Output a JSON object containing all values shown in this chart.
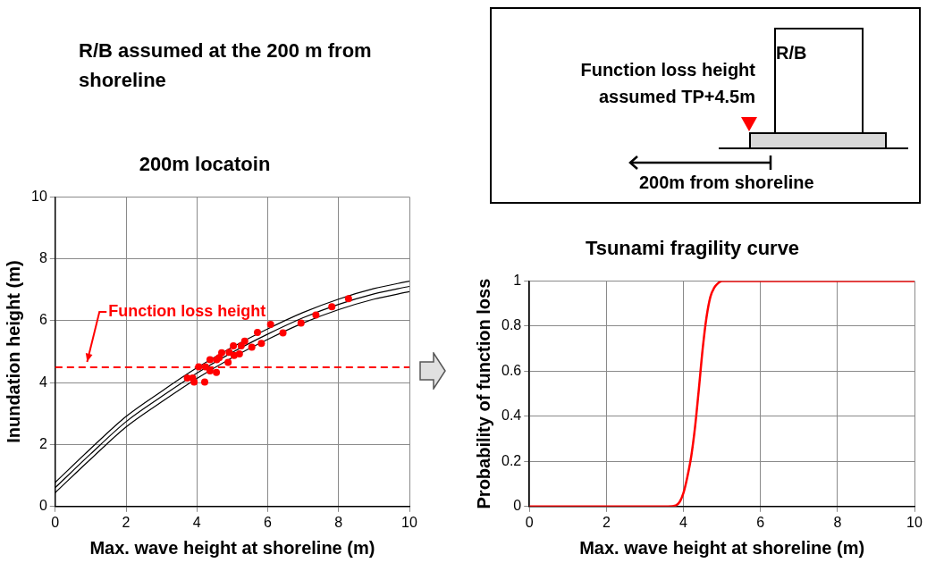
{
  "chart_data": [
    {
      "type": "scatter",
      "title": "200m locatoin",
      "xlabel": "Max. wave height at shoreline (m)",
      "ylabel": "Inundation height (m)",
      "xlim": [
        0,
        10
      ],
      "xticks": [
        0,
        2,
        4,
        6,
        8,
        10
      ],
      "ylim": [
        0,
        10
      ],
      "yticks": [
        0,
        2,
        4,
        6,
        8,
        10
      ],
      "grid": true,
      "series": [
        {
          "type": "scatter",
          "marker": "circle",
          "color": "#ff0000",
          "x": [
            3.73,
            3.88,
            3.92,
            4.05,
            4.22,
            4.24,
            4.31,
            4.37,
            4.37,
            4.55,
            4.56,
            4.63,
            4.7,
            4.88,
            4.91,
            5.03,
            5.05,
            5.2,
            5.25,
            5.35,
            5.55,
            5.71,
            5.82,
            6.08,
            6.43,
            6.94,
            7.36,
            7.81,
            8.28
          ],
          "values": [
            4.15,
            4.15,
            4.02,
            4.51,
            4.02,
            4.51,
            null,
            4.38,
            4.74,
            4.33,
            4.74,
            4.81,
            4.97,
            4.66,
            4.98,
            5.19,
            4.88,
            4.93,
            5.19,
            5.34,
            5.15,
            5.62,
            5.27,
            5.88,
            5.61,
            5.93,
            6.19,
            6.45,
            6.71
          ]
        },
        {
          "type": "line",
          "marker": "none",
          "color": "#000000",
          "x": [
            0,
            1,
            2,
            3,
            4,
            5,
            6,
            7,
            8,
            9,
            10
          ],
          "values": [
            0.78,
            1.87,
            2.91,
            3.72,
            4.48,
            5.15,
            5.74,
            6.27,
            6.7,
            7.04,
            7.28
          ]
        },
        {
          "type": "line",
          "marker": "none",
          "color": "#000000",
          "x": [
            0,
            1,
            2,
            3,
            4,
            5,
            6,
            7,
            8,
            9,
            10
          ],
          "values": [
            0.61,
            1.7,
            2.74,
            3.55,
            4.31,
            4.98,
            5.57,
            6.1,
            6.53,
            6.87,
            7.11
          ]
        },
        {
          "type": "line",
          "marker": "none",
          "color": "#000000",
          "x": [
            0,
            1,
            2,
            3,
            4,
            5,
            6,
            7,
            8,
            9,
            10
          ],
          "values": [
            0.45,
            1.53,
            2.57,
            3.38,
            4.14,
            4.81,
            5.4,
            5.93,
            6.36,
            6.7,
            6.94
          ]
        }
      ],
      "ref_lines": [
        {
          "axis": "y",
          "value": 4.5,
          "label": "Function loss height",
          "color": "#ff0000",
          "line_style": "dashed"
        }
      ]
    },
    {
      "type": "line",
      "title": "Tsunami fragility curve",
      "xlabel": "Max. wave height at shoreline (m)",
      "ylabel": "Probability of function loss",
      "xlim": [
        0,
        10
      ],
      "xticks": [
        0,
        2,
        4,
        6,
        8,
        10
      ],
      "ylim": [
        0,
        1
      ],
      "yticks": [
        0,
        0.2,
        0.4,
        0.6,
        0.8,
        1
      ],
      "grid": true,
      "marker": "none",
      "series": [
        {
          "color": "#ff0000",
          "x": [
            0,
            3.6,
            3.8,
            3.9,
            4.0,
            4.1,
            4.2,
            4.3,
            4.4,
            4.5,
            4.6,
            4.7,
            4.8,
            4.9,
            5.0,
            10
          ],
          "values": [
            0,
            0,
            0.005,
            0.02,
            0.06,
            0.13,
            0.22,
            0.35,
            0.52,
            0.7,
            0.84,
            0.93,
            0.97,
            0.99,
            1,
            1
          ]
        }
      ]
    },
    {
      "type": "other",
      "annotations": [
        "R/B assumed at the 200 m from shoreline",
        "R/B",
        "Function loss height assumed TP+4.5m",
        "200m from shoreline"
      ]
    }
  ]
}
